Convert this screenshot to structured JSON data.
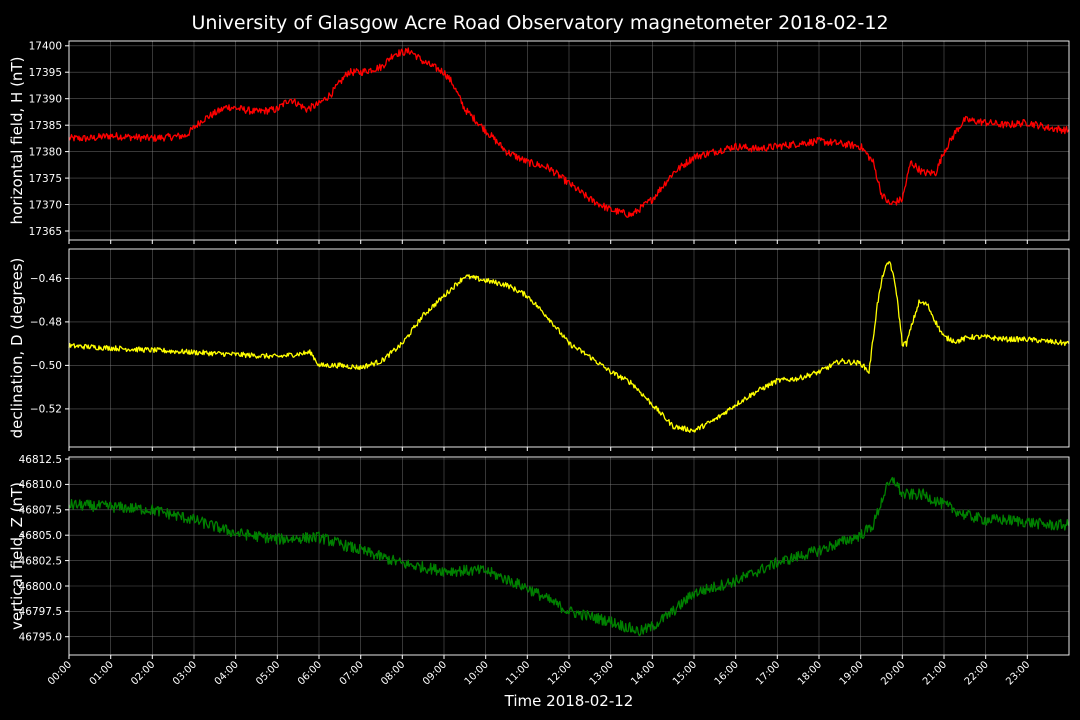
{
  "colors": {
    "background": "#000000",
    "text": "#ffffff",
    "grid": "#808080",
    "axis": "#ffffff"
  },
  "chart_data": {
    "type": "line",
    "title": "University of Glasgow Acre Road Observatory magnetometer 2018-02-12",
    "xlabel": "Time 2018-02-12",
    "x_ticks": [
      "00:00",
      "01:00",
      "02:00",
      "03:00",
      "04:00",
      "05:00",
      "06:00",
      "07:00",
      "08:00",
      "09:00",
      "10:00",
      "11:00",
      "12:00",
      "13:00",
      "14:00",
      "15:00",
      "16:00",
      "17:00",
      "18:00",
      "19:00",
      "20:00",
      "21:00",
      "22:00",
      "23:00"
    ],
    "xlim_hours": [
      0,
      24
    ],
    "panels": [
      {
        "ylabel": "horizontal field, H (nT)",
        "color": "#ff0000",
        "ylim": [
          17363.3,
          17400.9
        ],
        "yticks": [
          17365,
          17370,
          17375,
          17380,
          17385,
          17390,
          17395,
          17400
        ],
        "ytick_labels": [
          "17365",
          "17370",
          "17375",
          "17380",
          "17385",
          "17390",
          "17395",
          "17400"
        ],
        "noise": 0.7,
        "series": {
          "hours": [
            0,
            0.5,
            1,
            2,
            2.8,
            3.2,
            3.8,
            4.5,
            5,
            5.3,
            5.7,
            6,
            6.3,
            6.7,
            7,
            7.5,
            7.8,
            8.2,
            8.5,
            9,
            9.2,
            9.5,
            10,
            10.5,
            11,
            11.5,
            12,
            12.5,
            13,
            13.5,
            14,
            14.5,
            15,
            15.5,
            16,
            16.5,
            17,
            17.5,
            18,
            18.5,
            19,
            19.3,
            19.5,
            19.7,
            20,
            20.2,
            20.5,
            20.8,
            21,
            21.3,
            21.5,
            22,
            22.5,
            23,
            23.5,
            24
          ],
          "values": [
            17382.5,
            17382.5,
            17383,
            17382.5,
            17383,
            17386,
            17388.5,
            17387.5,
            17388,
            17390,
            17388,
            17389,
            17391,
            17395,
            17395,
            17396,
            17398.5,
            17399,
            17397,
            17395,
            17393,
            17388,
            17384,
            17380,
            17378,
            17377,
            17374,
            17371,
            17369,
            17368,
            17371,
            17376,
            17379,
            17380,
            17381,
            17380.5,
            17381,
            17381.5,
            17382,
            17381.5,
            17381,
            17378,
            17372,
            17370,
            17371,
            17378,
            17376,
            17376,
            17380,
            17384,
            17386,
            17385.5,
            17385,
            17385.5,
            17384.5,
            17384
          ]
        }
      },
      {
        "ylabel": "declination, D (degrees)",
        "color": "#ffff00",
        "ylim": [
          -0.5375,
          -0.4465
        ],
        "yticks": [
          -0.52,
          -0.5,
          -0.48,
          -0.46
        ],
        "ytick_labels": [
          "−0.52",
          "−0.50",
          "−0.48",
          "−0.46"
        ],
        "noise": 0.0012,
        "series": {
          "hours": [
            0,
            1,
            2,
            3,
            4,
            5,
            5.8,
            6,
            6.5,
            7,
            7.5,
            8,
            8.5,
            9,
            9.5,
            10,
            10.5,
            11,
            11.5,
            12,
            12.5,
            13,
            13.5,
            14,
            14.5,
            15,
            15.5,
            16,
            16.5,
            17,
            17.5,
            18,
            18.5,
            19,
            19.2,
            19.4,
            19.55,
            19.7,
            19.85,
            20,
            20.1,
            20.25,
            20.4,
            20.6,
            20.8,
            21,
            21.3,
            21.6,
            22,
            22.5,
            23,
            23.5,
            24
          ],
          "values": [
            -0.491,
            -0.492,
            -0.493,
            -0.494,
            -0.495,
            -0.496,
            -0.494,
            -0.5,
            -0.5,
            -0.501,
            -0.498,
            -0.49,
            -0.477,
            -0.468,
            -0.459,
            -0.461,
            -0.463,
            -0.468,
            -0.478,
            -0.49,
            -0.496,
            -0.503,
            -0.508,
            -0.518,
            -0.528,
            -0.53,
            -0.525,
            -0.518,
            -0.512,
            -0.507,
            -0.506,
            -0.503,
            -0.498,
            -0.499,
            -0.503,
            -0.472,
            -0.457,
            -0.452,
            -0.465,
            -0.49,
            -0.49,
            -0.48,
            -0.471,
            -0.472,
            -0.48,
            -0.487,
            -0.489,
            -0.487,
            -0.487,
            -0.488,
            -0.488,
            -0.489,
            -0.49
          ]
        }
      },
      {
        "ylabel": "vertical field, Z (nT)",
        "color": "#008000",
        "ylim": [
          46793.2,
          46812.7
        ],
        "yticks": [
          46795,
          46797.5,
          46800,
          46802.5,
          46805,
          46807.5,
          46810,
          46812.5
        ],
        "ytick_labels": [
          "46795.0",
          "46797.5",
          "46800.0",
          "46802.5",
          "46805.0",
          "46807.5",
          "46810.0",
          "46812.5"
        ],
        "noise": 0.55,
        "series": {
          "hours": [
            0,
            1,
            2,
            3,
            4,
            5,
            6,
            7,
            8,
            9,
            10,
            11,
            12,
            13,
            13.7,
            14,
            14.5,
            15,
            16,
            17,
            18,
            19,
            19.3,
            19.6,
            19.8,
            20,
            20.5,
            21,
            21.5,
            22,
            22.5,
            23,
            23.5,
            24
          ],
          "values": [
            46808,
            46807.8,
            46807.5,
            46806.5,
            46805.2,
            46804.6,
            46804.8,
            46803.5,
            46802.2,
            46801.5,
            46801.5,
            46799.8,
            46797.5,
            46796.5,
            46795.5,
            46796,
            46797.5,
            46799.3,
            46800.5,
            46802.3,
            46803.5,
            46805,
            46806,
            46809.5,
            46810.5,
            46809,
            46809,
            46808,
            46807,
            46806.5,
            46806.5,
            46806.3,
            46806,
            46806
          ]
        }
      }
    ]
  }
}
